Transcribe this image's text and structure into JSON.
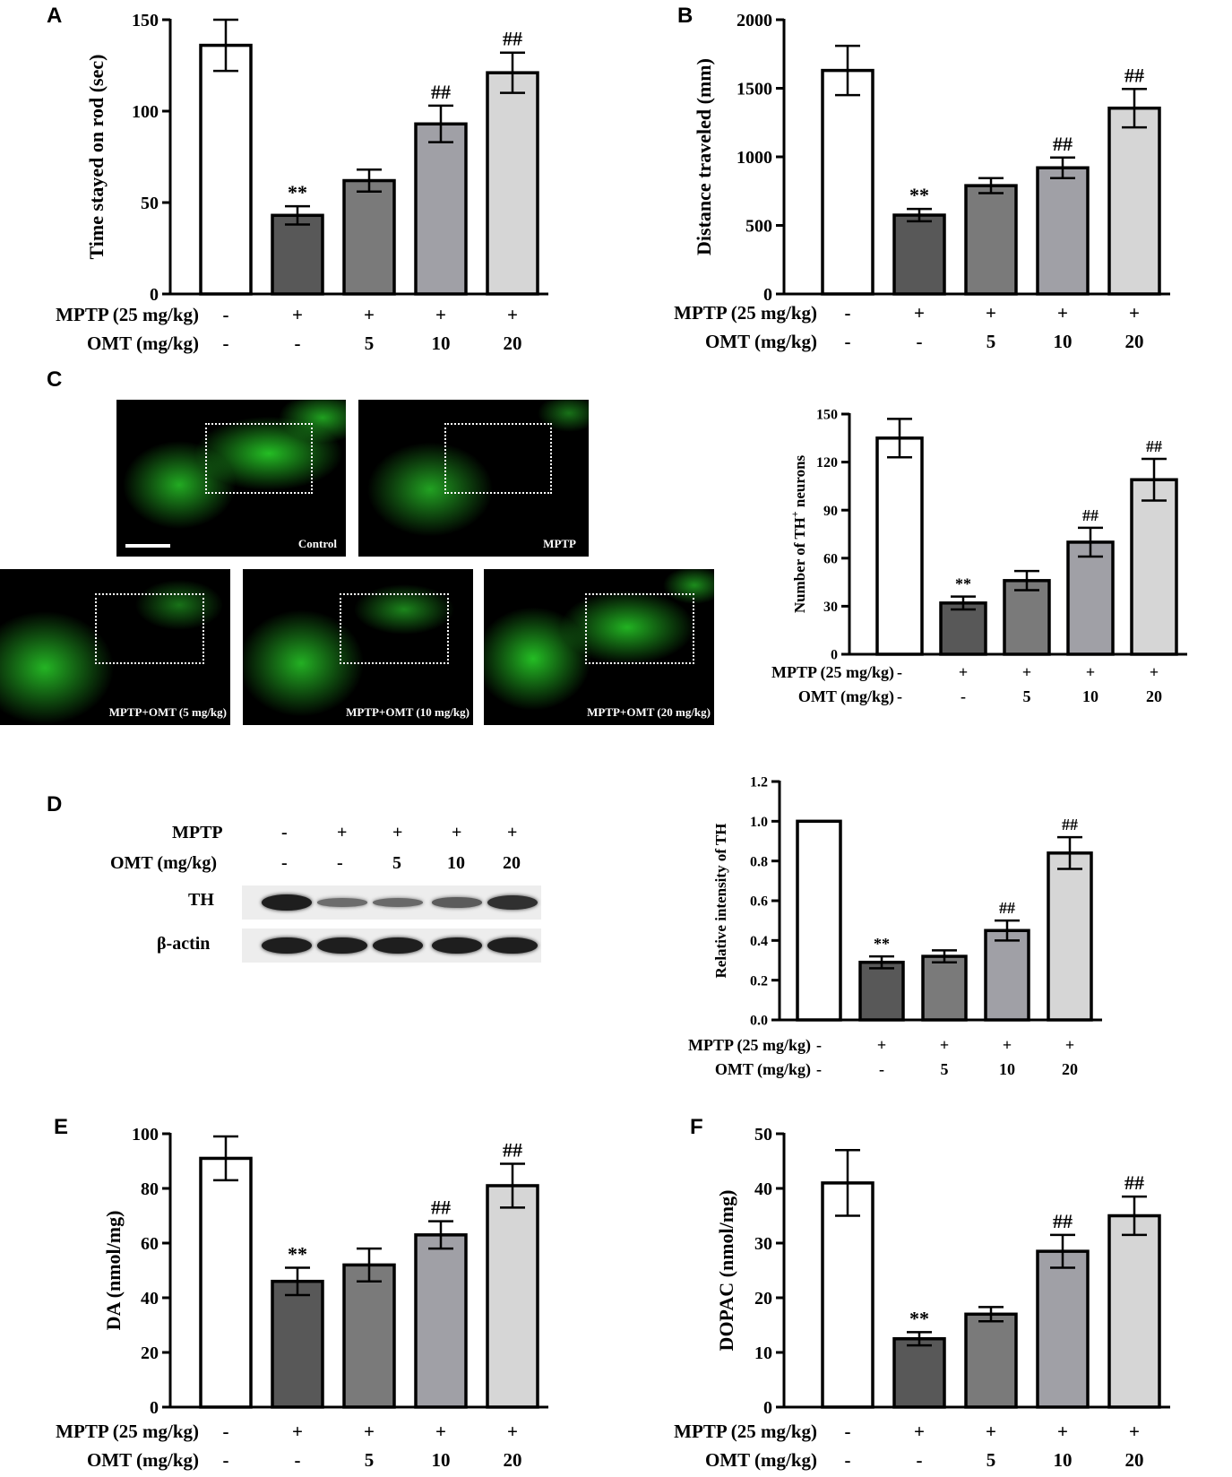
{
  "panels": {
    "A": "A",
    "B": "B",
    "C": "C",
    "D": "D",
    "E": "E",
    "F": "F"
  },
  "treatment_labels": {
    "mptp_row": "MPTP (25 mg/kg)",
    "omt_row": "OMT (mg/kg)",
    "mptp_signs": [
      "-",
      "+",
      "+",
      "+",
      "+"
    ],
    "omt_doses": [
      "-",
      "-",
      "5",
      "10",
      "20"
    ]
  },
  "bar_colors": [
    "#ffffff",
    "#585858",
    "#7a7a7a",
    "#a0a0a6",
    "#d6d6d6"
  ],
  "chart_data": [
    {
      "id": "A",
      "type": "bar",
      "categories": [
        "Control",
        "MPTP",
        "MPTP+OMT 5",
        "MPTP+OMT 10",
        "MPTP+OMT 20"
      ],
      "values": [
        136,
        43,
        62,
        93,
        121
      ],
      "errors": [
        14,
        5,
        6,
        10,
        11
      ],
      "annotations": [
        "",
        "**",
        "",
        "##",
        "##"
      ],
      "ylabel": "Time stayed on rod (sec)",
      "ylim": [
        0,
        150
      ],
      "yticks": [
        0,
        50,
        100,
        150
      ],
      "grid": false
    },
    {
      "id": "B",
      "type": "bar",
      "categories": [
        "Control",
        "MPTP",
        "MPTP+OMT 5",
        "MPTP+OMT 10",
        "MPTP+OMT 20"
      ],
      "values": [
        1630,
        575,
        790,
        920,
        1355
      ],
      "errors": [
        180,
        45,
        55,
        75,
        140
      ],
      "annotations": [
        "",
        "**",
        "",
        "##",
        "##"
      ],
      "ylabel": "Distance traveled (mm)",
      "ylim": [
        0,
        2000
      ],
      "yticks": [
        0,
        500,
        1000,
        1500,
        2000
      ],
      "grid": false
    },
    {
      "id": "C",
      "type": "bar",
      "categories": [
        "Control",
        "MPTP",
        "MPTP+OMT 5",
        "MPTP+OMT 10",
        "MPTP+OMT 20"
      ],
      "values": [
        135,
        32,
        46,
        70,
        109
      ],
      "errors": [
        12,
        4,
        6,
        9,
        13
      ],
      "annotations": [
        "",
        "**",
        "",
        "##",
        "##"
      ],
      "ylabel": "Number of TH",
      "ylabel_sup": "+",
      "ylabel_tail": " neurons",
      "ylim": [
        0,
        150
      ],
      "yticks": [
        0,
        30,
        60,
        90,
        120,
        150
      ],
      "grid": false
    },
    {
      "id": "D",
      "type": "bar",
      "categories": [
        "Control",
        "MPTP",
        "MPTP+OMT 5",
        "MPTP+OMT 10",
        "MPTP+OMT 20"
      ],
      "values": [
        1.0,
        0.29,
        0.32,
        0.45,
        0.84
      ],
      "errors": [
        0,
        0.03,
        0.03,
        0.05,
        0.08
      ],
      "annotations": [
        "",
        "**",
        "",
        "##",
        "##"
      ],
      "ylabel": "Relative intensity of TH",
      "ylim": [
        0,
        1.2
      ],
      "yticks": [
        "0.0",
        "0.2",
        "0.4",
        "0.6",
        "0.8",
        "1.0",
        "1.2"
      ],
      "grid": false
    },
    {
      "id": "E",
      "type": "bar",
      "categories": [
        "Control",
        "MPTP",
        "MPTP+OMT 5",
        "MPTP+OMT 10",
        "MPTP+OMT 20"
      ],
      "values": [
        91,
        46,
        52,
        63,
        81
      ],
      "errors": [
        8,
        5,
        6,
        5,
        8
      ],
      "annotations": [
        "",
        "**",
        "",
        "##",
        "##"
      ],
      "ylabel": "DA (nmol/mg)",
      "ylim": [
        0,
        100
      ],
      "yticks": [
        0,
        20,
        40,
        60,
        80,
        100
      ],
      "grid": false
    },
    {
      "id": "F",
      "type": "bar",
      "categories": [
        "Control",
        "MPTP",
        "MPTP+OMT 5",
        "MPTP+OMT 10",
        "MPTP+OMT 20"
      ],
      "values": [
        41,
        12.5,
        17,
        28.5,
        35
      ],
      "errors": [
        6,
        1.2,
        1.3,
        3,
        3.5
      ],
      "annotations": [
        "",
        "**",
        "",
        "##",
        "##"
      ],
      "ylabel": "DOPAC (nmol/mg)",
      "ylim": [
        0,
        50
      ],
      "yticks": [
        0,
        10,
        20,
        30,
        40,
        50
      ],
      "grid": false
    }
  ],
  "micrographs": {
    "control": "Control",
    "mptp": "MPTP",
    "omt5": "MPTP+OMT (5 mg/kg)",
    "omt10": "MPTP+OMT (10 mg/kg)",
    "omt20": "MPTP+OMT (20 mg/kg)"
  },
  "western_blot": {
    "mptp_label": "MPTP",
    "omt_label": "OMT (mg/kg)",
    "mptp_signs": [
      "-",
      "+",
      "+",
      "+",
      "+"
    ],
    "omt_doses": [
      "-",
      "-",
      "5",
      "10",
      "20"
    ],
    "th_label": "TH",
    "actin_label": "β-actin",
    "th_band_intensity": [
      1.0,
      0.29,
      0.32,
      0.45,
      0.84
    ],
    "actin_band_intensity": [
      1.0,
      1.0,
      1.0,
      1.0,
      1.0
    ]
  }
}
